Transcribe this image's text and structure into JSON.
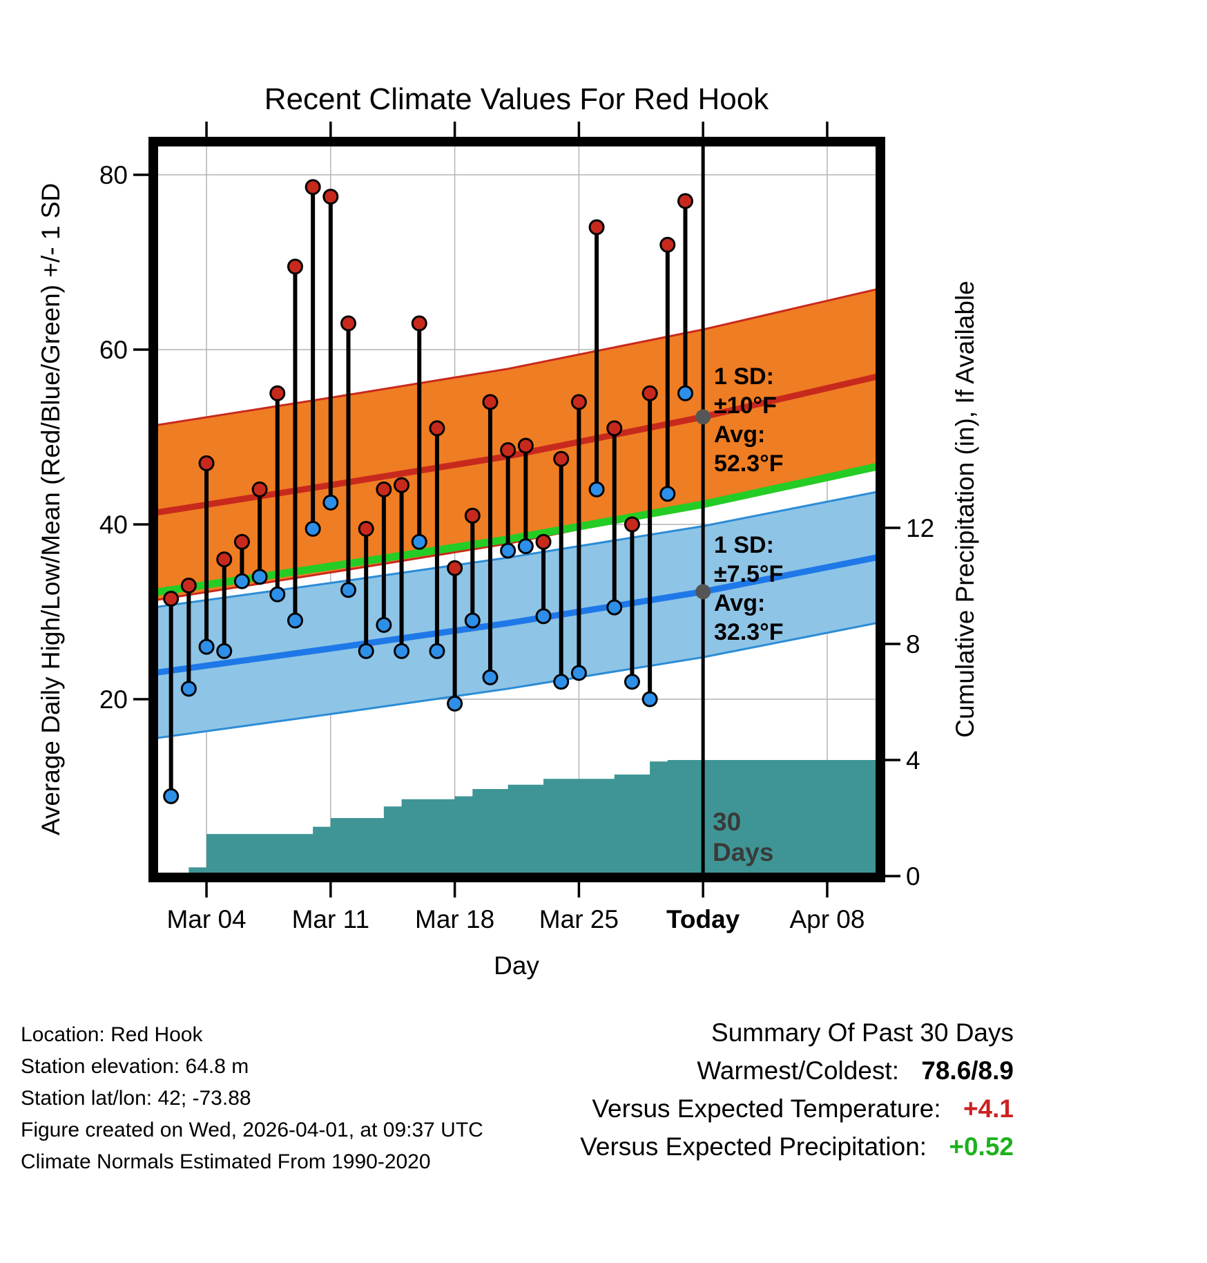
{
  "title": "Recent Climate Values For Red Hook",
  "colors": {
    "high_band": "#EF7D23",
    "high_line": "#C8291D",
    "low_band": "#8EC4E6",
    "low_line": "#1E78E8",
    "low_edge": "#2B8CD6",
    "low_dot": "#2E8FE8",
    "mean_line": "#25CC25",
    "precip_fill": "#3F9595",
    "stem": "#000000",
    "annotation_gray": "#787878",
    "avg_marker": "#555555",
    "temp_anomaly": "#CC2222",
    "precip_anomaly": "#1DB11D"
  },
  "chart_data": {
    "type": "line",
    "title": "Recent Climate Values For Red Hook",
    "xlabel": "Day",
    "ylabel_left": "Average Daily High/Low/Mean (Red/Blue/Green) +/- 1 SD",
    "ylabel_right": "Cumulative Precipitation (in), If Available",
    "y_left_ticks": [
      20,
      40,
      60,
      80
    ],
    "y_left_range": [
      -0.5,
      84
    ],
    "y_right_ticks": [
      0,
      4,
      8,
      12
    ],
    "y_right_range": [
      0,
      25.3
    ],
    "x_range_days": 41,
    "today_day": 31,
    "x_ticks": [
      {
        "day": 3,
        "label": "Mar 04",
        "bold": false
      },
      {
        "day": 10,
        "label": "Mar 11",
        "bold": false
      },
      {
        "day": 17,
        "label": "Mar 18",
        "bold": false
      },
      {
        "day": 24,
        "label": "Mar 25",
        "bold": false
      },
      {
        "day": 31,
        "label": "Today",
        "bold": true
      },
      {
        "day": 38,
        "label": "Apr 08",
        "bold": false
      }
    ],
    "daily_high_low": [
      {
        "day": 1,
        "high": 31.5,
        "low": 8.9
      },
      {
        "day": 2,
        "high": 33,
        "low": 21.2
      },
      {
        "day": 3,
        "high": 47,
        "low": 26
      },
      {
        "day": 4,
        "high": 36,
        "low": 25.5
      },
      {
        "day": 5,
        "high": 38,
        "low": 33.5
      },
      {
        "day": 6,
        "high": 44,
        "low": 34
      },
      {
        "day": 7,
        "high": 55,
        "low": 32
      },
      {
        "day": 8,
        "high": 69.5,
        "low": 29
      },
      {
        "day": 9,
        "high": 78.6,
        "low": 39.5
      },
      {
        "day": 10,
        "high": 77.5,
        "low": 42.5
      },
      {
        "day": 11,
        "high": 63,
        "low": 32.5
      },
      {
        "day": 12,
        "high": 39.5,
        "low": 25.5
      },
      {
        "day": 13,
        "high": 44,
        "low": 28.5
      },
      {
        "day": 14,
        "high": 44.5,
        "low": 25.5
      },
      {
        "day": 15,
        "high": 63,
        "low": 38
      },
      {
        "day": 16,
        "high": 51,
        "low": 25.5
      },
      {
        "day": 17,
        "high": 35,
        "low": 19.5
      },
      {
        "day": 18,
        "high": 41,
        "low": 29
      },
      {
        "day": 19,
        "high": 54,
        "low": 22.5
      },
      {
        "day": 20,
        "high": 48.5,
        "low": 37
      },
      {
        "day": 21,
        "high": 49,
        "low": 37.5
      },
      {
        "day": 22,
        "high": 38,
        "low": 29.5
      },
      {
        "day": 23,
        "high": 47.5,
        "low": 22
      },
      {
        "day": 24,
        "high": 54,
        "low": 23
      },
      {
        "day": 25,
        "high": 74,
        "low": 44
      },
      {
        "day": 26,
        "high": 51,
        "low": 30.5
      },
      {
        "day": 27,
        "high": 40,
        "low": 22
      },
      {
        "day": 28,
        "high": 55,
        "low": 20
      },
      {
        "day": 29,
        "high": 72,
        "low": 43.5
      },
      {
        "day": 30,
        "high": 77,
        "low": 55
      }
    ],
    "normals": {
      "high_center": [
        [
          0,
          41.3
        ],
        [
          10,
          44.5
        ],
        [
          20,
          47.8
        ],
        [
          31,
          52.3
        ],
        [
          41,
          57.0
        ]
      ],
      "high_half_width": 10,
      "low_center": [
        [
          0,
          23.0
        ],
        [
          10,
          25.8
        ],
        [
          20,
          28.7
        ],
        [
          31,
          32.3
        ],
        [
          41,
          36.3
        ]
      ],
      "low_half_width": 7.5,
      "mean": [
        [
          0,
          32.2
        ],
        [
          10,
          35.2
        ],
        [
          20,
          38.3
        ],
        [
          31,
          42.3
        ],
        [
          41,
          46.7
        ]
      ]
    },
    "precip_cumulative_steps": [
      [
        1.5,
        0.1
      ],
      [
        2,
        0.3
      ],
      [
        3,
        1.45
      ],
      [
        9,
        1.7
      ],
      [
        10,
        2.0
      ],
      [
        13,
        2.4
      ],
      [
        14,
        2.65
      ],
      [
        17,
        2.75
      ],
      [
        18,
        3.0
      ],
      [
        20,
        3.15
      ],
      [
        22,
        3.35
      ],
      [
        26,
        3.5
      ],
      [
        28,
        3.95
      ],
      [
        29,
        4.0
      ]
    ],
    "annotations": {
      "high": [
        "1 SD:",
        "±10°F",
        "Avg:",
        "52.3°F"
      ],
      "low": [
        "1 SD:",
        "±7.5°F",
        "Avg:",
        "32.3°F"
      ],
      "today": [
        "30",
        "Days"
      ],
      "high_avg_value": 52.3,
      "low_avg_value": 32.3
    }
  },
  "footer": {
    "lines": [
      "Location: Red Hook",
      "Station elevation: 64.8 m",
      "Station lat/lon: 42; -73.88",
      "Figure created on Wed, 2026-04-01, at 09:37 UTC",
      "Climate Normals Estimated From 1990-2020"
    ]
  },
  "summary": {
    "title": "Summary Of Past 30 Days",
    "warmest_label": "Warmest/Coldest:",
    "warmest_value": "78.6/8.9",
    "temp_label": "Versus Expected Temperature:",
    "temp_value": "+4.1",
    "precip_label": "Versus Expected Precipitation:",
    "precip_value": "+0.52"
  }
}
